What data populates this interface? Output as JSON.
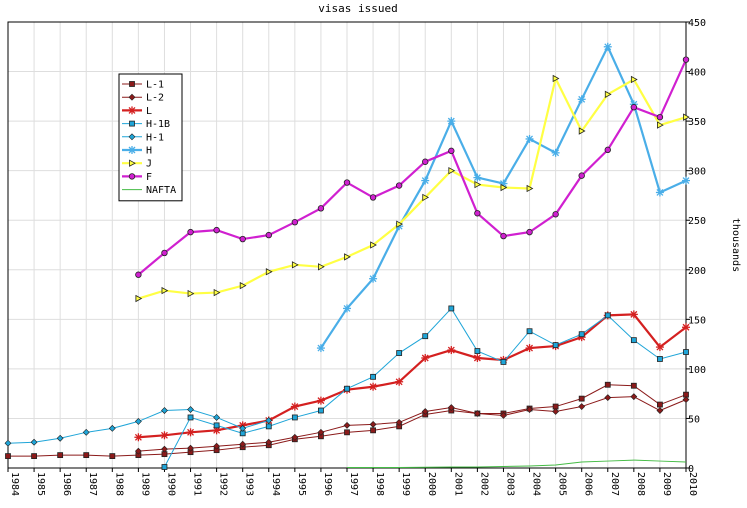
{
  "chart_data": {
    "type": "line",
    "title": "visas issued",
    "ylabel": "thousands",
    "xlabel": "",
    "x": [
      1984,
      1985,
      1986,
      1987,
      1988,
      1989,
      1990,
      1991,
      1992,
      1993,
      1994,
      1995,
      1996,
      1997,
      1998,
      1999,
      2000,
      2001,
      2002,
      2003,
      2004,
      2005,
      2006,
      2007,
      2008,
      2009,
      2010
    ],
    "xlim": [
      1984,
      2010
    ],
    "ylim": [
      0,
      450
    ],
    "yticks": [
      0,
      50,
      100,
      150,
      200,
      250,
      300,
      350,
      400,
      450
    ],
    "grid": true,
    "legend_position": "top-left",
    "series": [
      {
        "name": "L-1",
        "color": "#8b1a1a",
        "marker": "square",
        "values": [
          12,
          12,
          13,
          13,
          12,
          13,
          14,
          16,
          18,
          21,
          23,
          29,
          32,
          36,
          38,
          42,
          54,
          58,
          55,
          55,
          60,
          62,
          70,
          84,
          83,
          64,
          74
        ]
      },
      {
        "name": "L-2",
        "color": "#8b1a1a",
        "marker": "diamond",
        "values": [
          null,
          null,
          null,
          null,
          null,
          17,
          19,
          20,
          22,
          24,
          26,
          31,
          36,
          43,
          44,
          46,
          57,
          61,
          55,
          53,
          59,
          57,
          62,
          71,
          72,
          58,
          69
        ]
      },
      {
        "name": "L",
        "color": "#d42020",
        "marker": "star",
        "values": [
          null,
          null,
          null,
          null,
          null,
          31,
          33,
          36,
          38,
          43,
          48,
          62,
          68,
          79,
          82,
          87,
          111,
          119,
          111,
          109,
          121,
          123,
          132,
          154,
          155,
          122,
          142
        ]
      },
      {
        "name": "H-1B",
        "color": "#1fa5d8",
        "marker": "square",
        "values": [
          null,
          null,
          null,
          null,
          null,
          null,
          1,
          51,
          43,
          35,
          42,
          51,
          58,
          80,
          92,
          116,
          133,
          161,
          118,
          107,
          138,
          124,
          135,
          154,
          129,
          110,
          117
        ]
      },
      {
        "name": "H-1",
        "color": "#1fa5d8",
        "marker": "diamond",
        "values": [
          25,
          26,
          30,
          36,
          40,
          47,
          58,
          59,
          51,
          40,
          48,
          null,
          null,
          null,
          null,
          null,
          null,
          null,
          null,
          null,
          null,
          null,
          null,
          null,
          null,
          null,
          null
        ]
      },
      {
        "name": "H",
        "color": "#4aaee8",
        "marker": "star",
        "values": [
          null,
          null,
          null,
          null,
          null,
          null,
          null,
          null,
          null,
          null,
          null,
          null,
          121,
          161,
          191,
          244,
          290,
          350,
          293,
          287,
          332,
          318,
          372,
          425,
          367,
          278,
          290
        ]
      },
      {
        "name": "J",
        "color": "#ffff44",
        "marker": "triangle",
        "values": [
          null,
          null,
          null,
          null,
          null,
          171,
          179,
          176,
          177,
          184,
          198,
          205,
          203,
          213,
          225,
          246,
          273,
          300,
          286,
          283,
          282,
          393,
          340,
          377,
          392,
          346,
          354
        ]
      },
      {
        "name": "F",
        "color": "#d020d0",
        "marker": "circle",
        "values": [
          null,
          null,
          null,
          null,
          null,
          195,
          217,
          238,
          240,
          231,
          235,
          248,
          262,
          288,
          273,
          285,
          309,
          320,
          257,
          234,
          238,
          256,
          295,
          321,
          364,
          354,
          412
        ]
      },
      {
        "name": "NAFTA",
        "color": "#44bb44",
        "marker": "plus",
        "values": [
          null,
          null,
          null,
          null,
          null,
          null,
          null,
          null,
          null,
          null,
          null,
          null,
          null,
          0.5,
          0.5,
          0.5,
          0.8,
          1,
          1,
          1.5,
          2,
          3,
          6,
          7,
          8,
          7,
          6
        ]
      }
    ]
  }
}
